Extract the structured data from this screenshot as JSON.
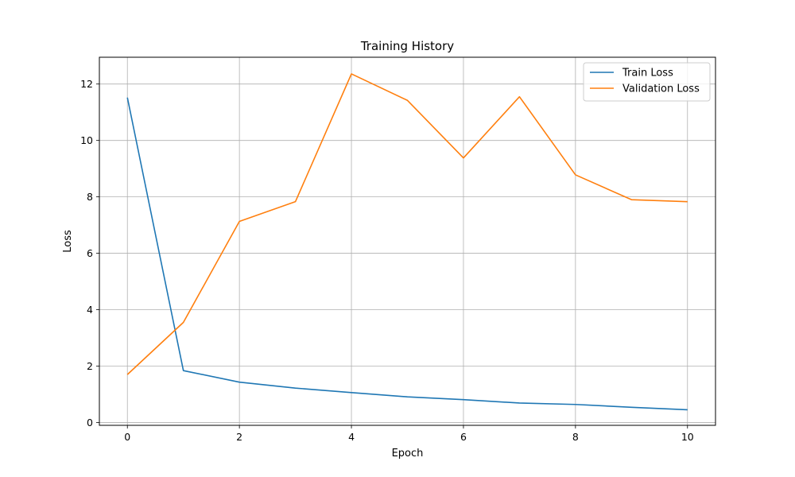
{
  "chart_data": {
    "type": "line",
    "title": "Training History",
    "xlabel": "Epoch",
    "ylabel": "Loss",
    "x": [
      0,
      1,
      2,
      3,
      4,
      5,
      6,
      7,
      8,
      9,
      10
    ],
    "xlim": [
      -0.5,
      10.5
    ],
    "ylim": [
      -0.1,
      12.95
    ],
    "xticks": [
      0,
      2,
      4,
      6,
      8,
      10
    ],
    "yticks": [
      0,
      2,
      4,
      6,
      8,
      10,
      12
    ],
    "grid": true,
    "legend_position": "top-right",
    "series": [
      {
        "name": "Train Loss",
        "color": "#1f77b4",
        "values": [
          11.52,
          1.84,
          1.43,
          1.22,
          1.06,
          0.91,
          0.81,
          0.69,
          0.64,
          0.54,
          0.45
        ]
      },
      {
        "name": "Validation Loss",
        "color": "#ff7f0e",
        "values": [
          1.7,
          3.55,
          7.13,
          7.83,
          12.36,
          11.42,
          9.38,
          11.55,
          8.78,
          7.9,
          7.83
        ]
      }
    ]
  }
}
